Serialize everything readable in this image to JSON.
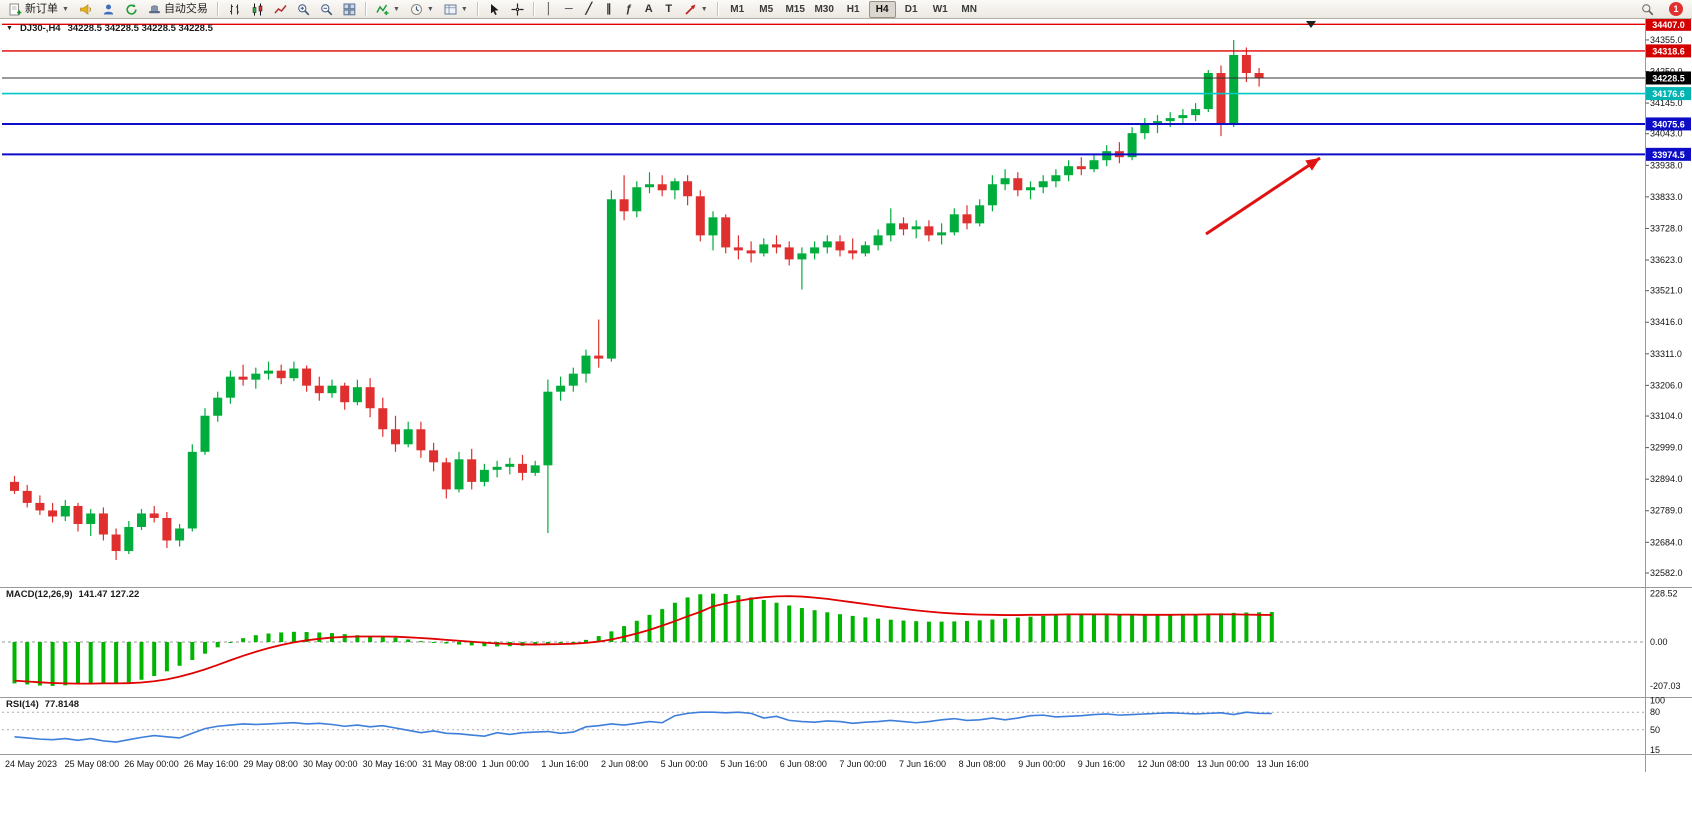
{
  "toolbar": {
    "new_order_label": "新订单",
    "autotrading_label": "自动交易",
    "tool_glyphs": [
      {
        "name": "vertical-line",
        "glyph": "│"
      },
      {
        "name": "horizontal-line",
        "glyph": "─"
      },
      {
        "name": "trendline",
        "glyph": "╱"
      },
      {
        "name": "equidistant-channel",
        "glyph": "∥"
      },
      {
        "name": "fibonacci",
        "glyph": "ƒ"
      },
      {
        "name": "text",
        "glyph": "A"
      },
      {
        "name": "text-label",
        "glyph": "T"
      }
    ],
    "timeframes": [
      "M1",
      "M5",
      "M15",
      "M30",
      "H1",
      "H4",
      "D1",
      "W1",
      "MN"
    ],
    "active_timeframe": "H4",
    "notification_count": "1"
  },
  "chart": {
    "title": "DJ30-,H4",
    "ohlc": "34228.5 34228.5 34228.5 34228.5"
  },
  "price_axis": {
    "ticks": [
      34355.0,
      34250.0,
      34145.0,
      34043.0,
      33938.0,
      33833.0,
      33728.0,
      33623.0,
      33521.0,
      33416.0,
      33311.0,
      33206.0,
      33104.0,
      32999.0,
      32894.0,
      32789.0,
      32684.0,
      32582.0
    ],
    "badges": [
      {
        "value": "34407.0",
        "price": 34407.0,
        "color": "#d40000"
      },
      {
        "value": "34318.6",
        "price": 34318.6,
        "color": "#d40000"
      },
      {
        "value": "34228.5",
        "price": 34228.5,
        "color": "#000000"
      },
      {
        "value": "34176.6",
        "price": 34176.6,
        "color": "#00b4b4"
      },
      {
        "value": "34075.6",
        "price": 34075.6,
        "color": "#0d0dc8"
      },
      {
        "value": "33974.5",
        "price": 33974.5,
        "color": "#0d0dc8"
      }
    ]
  },
  "levels": [
    {
      "price": 34407.0,
      "color": "#e00000",
      "width": 1.4
    },
    {
      "price": 34318.6,
      "color": "#e00000",
      "width": 1.4
    },
    {
      "price": 34228.5,
      "color": "#333333",
      "width": 1
    },
    {
      "price": 34176.6,
      "color": "#00c8c8",
      "width": 1.6
    },
    {
      "price": 34075.6,
      "color": "#0d0dc8",
      "width": 2
    },
    {
      "price": 33974.5,
      "color": "#0d0dc8",
      "width": 2
    }
  ],
  "annotations": [
    {
      "type": "arrow",
      "color": "#e11212",
      "from": [
        1206,
        234
      ],
      "to": [
        1320,
        158
      ]
    }
  ],
  "chart_data": {
    "type": "candlestick",
    "symbol": "DJ30-",
    "timeframe": "H4",
    "price_range": [
      32542,
      34428
    ],
    "up_color": "#00ad3c",
    "down_color": "#df2f2f",
    "candles": [
      [
        32885,
        32905,
        32845,
        32855
      ],
      [
        32855,
        32875,
        32800,
        32815
      ],
      [
        32815,
        32840,
        32775,
        32790
      ],
      [
        32790,
        32815,
        32750,
        32770
      ],
      [
        32770,
        32825,
        32755,
        32805
      ],
      [
        32805,
        32815,
        32720,
        32745
      ],
      [
        32745,
        32795,
        32705,
        32780
      ],
      [
        32780,
        32800,
        32690,
        32710
      ],
      [
        32710,
        32730,
        32625,
        32655
      ],
      [
        32655,
        32755,
        32645,
        32735
      ],
      [
        32735,
        32795,
        32725,
        32780
      ],
      [
        32780,
        32805,
        32750,
        32765
      ],
      [
        32765,
        32785,
        32665,
        32690
      ],
      [
        32690,
        32745,
        32670,
        32730
      ],
      [
        32730,
        33010,
        32720,
        32985
      ],
      [
        32985,
        33130,
        32975,
        33105
      ],
      [
        33105,
        33185,
        33085,
        33165
      ],
      [
        33165,
        33255,
        33145,
        33235
      ],
      [
        33235,
        33275,
        33205,
        33225
      ],
      [
        33225,
        33265,
        33195,
        33245
      ],
      [
        33245,
        33285,
        33225,
        33255
      ],
      [
        33255,
        33275,
        33210,
        33230
      ],
      [
        33230,
        33285,
        33220,
        33262
      ],
      [
        33262,
        33272,
        33185,
        33205
      ],
      [
        33205,
        33235,
        33155,
        33180
      ],
      [
        33180,
        33225,
        33165,
        33205
      ],
      [
        33205,
        33215,
        33125,
        33150
      ],
      [
        33150,
        33225,
        33140,
        33200
      ],
      [
        33200,
        33230,
        33100,
        33130
      ],
      [
        33130,
        33165,
        33035,
        33060
      ],
      [
        33060,
        33105,
        32985,
        33010
      ],
      [
        33010,
        33085,
        33000,
        33060
      ],
      [
        33060,
        33085,
        32965,
        32990
      ],
      [
        32990,
        33015,
        32920,
        32950
      ],
      [
        32950,
        32965,
        32830,
        32860
      ],
      [
        32860,
        32985,
        32850,
        32960
      ],
      [
        32960,
        32995,
        32860,
        32885
      ],
      [
        32885,
        32945,
        32870,
        32925
      ],
      [
        32925,
        32955,
        32900,
        32935
      ],
      [
        32935,
        32965,
        32910,
        32945
      ],
      [
        32945,
        32975,
        32890,
        32915
      ],
      [
        32915,
        32955,
        32905,
        32940
      ],
      [
        32940,
        33225,
        32715,
        33185
      ],
      [
        33185,
        33235,
        33155,
        33205
      ],
      [
        33205,
        33265,
        33185,
        33245
      ],
      [
        33245,
        33325,
        33215,
        33305
      ],
      [
        33305,
        33425,
        33265,
        33295
      ],
      [
        33295,
        33855,
        33285,
        33825
      ],
      [
        33825,
        33905,
        33755,
        33785
      ],
      [
        33785,
        33885,
        33765,
        33865
      ],
      [
        33865,
        33915,
        33845,
        33875
      ],
      [
        33875,
        33905,
        33835,
        33855
      ],
      [
        33855,
        33895,
        33825,
        33885
      ],
      [
        33885,
        33905,
        33805,
        33835
      ],
      [
        33835,
        33855,
        33685,
        33705
      ],
      [
        33705,
        33785,
        33655,
        33765
      ],
      [
        33765,
        33775,
        33645,
        33665
      ],
      [
        33665,
        33705,
        33625,
        33655
      ],
      [
        33655,
        33685,
        33615,
        33645
      ],
      [
        33645,
        33695,
        33635,
        33675
      ],
      [
        33675,
        33705,
        33645,
        33665
      ],
      [
        33665,
        33685,
        33605,
        33625
      ],
      [
        33625,
        33665,
        33525,
        33645
      ],
      [
        33645,
        33685,
        33625,
        33665
      ],
      [
        33665,
        33705,
        33645,
        33685
      ],
      [
        33685,
        33705,
        33635,
        33655
      ],
      [
        33655,
        33695,
        33625,
        33645
      ],
      [
        33645,
        33685,
        33635,
        33672
      ],
      [
        33672,
        33725,
        33655,
        33705
      ],
      [
        33705,
        33795,
        33685,
        33745
      ],
      [
        33745,
        33765,
        33705,
        33725
      ],
      [
        33725,
        33755,
        33695,
        33735
      ],
      [
        33735,
        33755,
        33685,
        33705
      ],
      [
        33705,
        33745,
        33675,
        33715
      ],
      [
        33715,
        33795,
        33705,
        33775
      ],
      [
        33775,
        33805,
        33725,
        33745
      ],
      [
        33745,
        33825,
        33735,
        33805
      ],
      [
        33805,
        33905,
        33785,
        33875
      ],
      [
        33875,
        33925,
        33855,
        33895
      ],
      [
        33895,
        33915,
        33835,
        33855
      ],
      [
        33855,
        33885,
        33825,
        33865
      ],
      [
        33865,
        33905,
        33845,
        33885
      ],
      [
        33885,
        33925,
        33865,
        33905
      ],
      [
        33905,
        33955,
        33885,
        33935
      ],
      [
        33935,
        33965,
        33905,
        33925
      ],
      [
        33925,
        33975,
        33915,
        33955
      ],
      [
        33955,
        34005,
        33935,
        33985
      ],
      [
        33985,
        34015,
        33945,
        33965
      ],
      [
        33965,
        34065,
        33955,
        34045
      ],
      [
        34045,
        34095,
        34025,
        34075
      ],
      [
        34075,
        34105,
        34045,
        34085
      ],
      [
        34085,
        34115,
        34065,
        34095
      ],
      [
        34095,
        34125,
        34075,
        34105
      ],
      [
        34105,
        34145,
        34085,
        34125
      ],
      [
        34125,
        34255,
        34115,
        34245
      ],
      [
        34245,
        34270,
        34035,
        34075
      ],
      [
        34075,
        34355,
        34065,
        34305
      ],
      [
        34305,
        34330,
        34215,
        34245
      ],
      [
        34245,
        34262,
        34200,
        34228.5
      ]
    ],
    "time_labels": [
      "24 May 2023",
      "25 May 08:00",
      "26 May 00:00",
      "26 May 16:00",
      "29 May 08:00",
      "30 May 00:00",
      "30 May 16:00",
      "31 May 08:00",
      "1 Jun 00:00",
      "1 Jun 16:00",
      "2 Jun 08:00",
      "5 Jun 00:00",
      "5 Jun 16:00",
      "6 Jun 08:00",
      "7 Jun 00:00",
      "7 Jun 16:00",
      "8 Jun 08:00",
      "9 Jun 00:00",
      "9 Jun 16:00",
      "12 Jun 08:00",
      "13 Jun 00:00",
      "13 Jun 16:00"
    ],
    "indicators": [
      {
        "name": "MACD",
        "label": "MACD(12,26,9)",
        "values_text": "141.47 127.22",
        "axis": [
          "228.52",
          "0.00",
          "-207.03"
        ],
        "range": [
          245,
          -245
        ],
        "histogram_color": "#00b400",
        "signal_color": "#e00000",
        "histogram": [
          -195,
          -200,
          -205,
          -207,
          -204,
          -199,
          -195,
          -192,
          -196,
          -190,
          -178,
          -160,
          -138,
          -112,
          -85,
          -55,
          -25,
          0,
          18,
          32,
          40,
          45,
          48,
          47,
          45,
          42,
          37,
          32,
          28,
          25,
          20,
          12,
          4,
          -2,
          -7,
          -12,
          -16,
          -20,
          -21,
          -20,
          -18,
          -14,
          -10,
          -6,
          -2,
          10,
          28,
          50,
          75,
          100,
          128,
          155,
          185,
          210,
          225,
          228,
          226,
          220,
          210,
          198,
          185,
          172,
          160,
          150,
          140,
          131,
          123,
          116,
          110,
          105,
          101,
          98,
          96,
          96,
          97,
          99,
          102,
          106,
          110,
          115,
          119,
          123,
          126,
          128,
          129,
          128,
          127,
          126,
          126,
          127,
          128,
          130,
          131,
          132,
          133,
          135,
          137,
          139,
          140,
          141
        ],
        "signal": [
          -182,
          -186,
          -190,
          -193,
          -195,
          -196,
          -196,
          -195,
          -195,
          -194,
          -191,
          -185,
          -176,
          -163,
          -147,
          -129,
          -108,
          -86,
          -65,
          -46,
          -29,
          -14,
          -2,
          8,
          15,
          21,
          24,
          26,
          26,
          26,
          25,
          22,
          19,
          15,
          10,
          6,
          1,
          -3,
          -7,
          -9,
          -11,
          -12,
          -11,
          -10,
          -8,
          -4,
          2,
          12,
          25,
          40,
          57,
          77,
          98,
          121,
          142,
          168,
          182,
          194,
          204,
          211,
          215,
          216,
          214,
          209,
          203,
          195,
          187,
          179,
          171,
          163,
          156,
          149,
          143,
          138,
          134,
          131,
          129,
          128,
          127,
          127,
          128,
          128,
          129,
          130,
          130,
          130,
          130,
          129,
          129,
          128,
          128,
          128,
          129,
          129,
          130,
          130,
          130,
          129,
          128,
          127
        ]
      },
      {
        "name": "RSI",
        "label": "RSI(14)",
        "values_text": "77.8148",
        "axis": [
          "100",
          "80",
          "50",
          "15"
        ],
        "range": [
          100,
          12
        ],
        "levels": [
          80,
          50
        ],
        "line_color": "#3d7edb",
        "line": [
          38,
          36,
          34,
          33,
          35,
          32,
          35,
          31,
          29,
          33,
          37,
          40,
          38,
          36,
          44,
          52,
          56,
          58,
          60,
          59,
          60,
          61,
          62,
          60,
          61,
          59,
          56,
          58,
          55,
          57,
          53,
          49,
          45,
          48,
          44,
          43,
          41,
          39,
          45,
          42,
          45,
          46,
          47,
          44,
          46,
          55,
          57,
          60,
          58,
          61,
          64,
          62,
          74,
          78,
          80,
          80,
          79,
          80,
          78,
          70,
          73,
          66,
          64,
          63,
          65,
          64,
          61,
          63,
          64,
          66,
          64,
          62,
          64,
          67,
          69,
          66,
          67,
          70,
          67,
          70,
          74,
          75,
          72,
          73,
          74,
          76,
          77,
          75,
          76,
          77,
          78,
          79,
          78,
          77,
          78,
          79,
          76,
          80,
          78,
          77.8
        ]
      }
    ]
  }
}
